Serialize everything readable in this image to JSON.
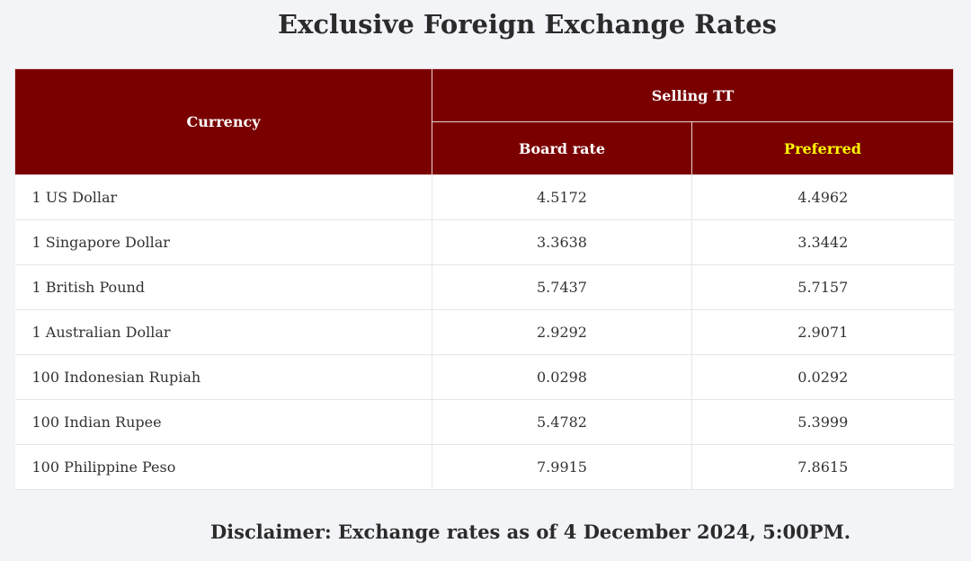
{
  "title": "Exclusive Foreign Exchange Rates",
  "table": {
    "headers": {
      "currency": "Currency",
      "selling_tt": "Selling TT",
      "board_rate": "Board rate",
      "preferred": "Preferred"
    },
    "rows": [
      {
        "currency": "1 US Dollar",
        "board_rate": "4.5172",
        "preferred": "4.4962"
      },
      {
        "currency": "1 Singapore Dollar",
        "board_rate": "3.3638",
        "preferred": "3.3442"
      },
      {
        "currency": "1 British Pound",
        "board_rate": "5.7437",
        "preferred": "5.7157"
      },
      {
        "currency": "1 Australian Dollar",
        "board_rate": "2.9292",
        "preferred": "2.9071"
      },
      {
        "currency": "100 Indonesian Rupiah",
        "board_rate": "0.0298",
        "preferred": "0.0292"
      },
      {
        "currency": "100 Indian Rupee",
        "board_rate": "5.4782",
        "preferred": "5.3999"
      },
      {
        "currency": "100 Philippine Peso",
        "board_rate": "7.9915",
        "preferred": "7.8615"
      }
    ]
  },
  "disclaimer": "Disclaimer: Exchange rates as of 4 December 2024, 5:00PM.",
  "colors": {
    "header_background": "#7a0000",
    "preferred_header_text": "#ffff00",
    "preferred_highlight": "#ffff00",
    "page_background": "#f3f4f8"
  }
}
